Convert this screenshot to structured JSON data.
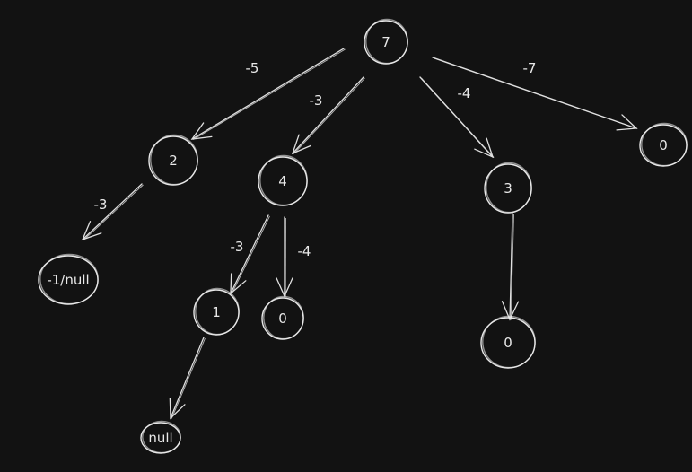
{
  "nodes": [
    {
      "id": "n7",
      "label": "7"
    },
    {
      "id": "n2",
      "label": "2"
    },
    {
      "id": "n4",
      "label": "4"
    },
    {
      "id": "n3",
      "label": "3"
    },
    {
      "id": "n0a",
      "label": "0"
    },
    {
      "id": "n-1null",
      "label": "-1/null"
    },
    {
      "id": "n1",
      "label": "1"
    },
    {
      "id": "n0b",
      "label": "0"
    },
    {
      "id": "n0c",
      "label": "0"
    },
    {
      "id": "nnull",
      "label": "null"
    }
  ],
  "edges": [
    {
      "from": "n7",
      "to": "n2",
      "label": "-5"
    },
    {
      "from": "n7",
      "to": "n4",
      "label": "-3"
    },
    {
      "from": "n7",
      "to": "n3",
      "label": "-4"
    },
    {
      "from": "n7",
      "to": "n0a",
      "label": "-7"
    },
    {
      "from": "n2",
      "to": "n-1null",
      "label": "-3"
    },
    {
      "from": "n4",
      "to": "n1",
      "label": "-3"
    },
    {
      "from": "n4",
      "to": "n0b",
      "label": "-4"
    },
    {
      "from": "n3",
      "to": "n0c",
      "label": ""
    },
    {
      "from": "n1",
      "to": "nnull",
      "label": ""
    }
  ],
  "colors": {
    "background": "#121212",
    "stroke": "#e8e8e8"
  }
}
